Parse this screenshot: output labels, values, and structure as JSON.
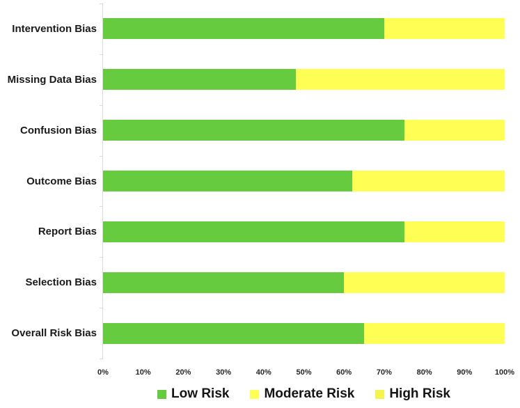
{
  "chart_data": {
    "type": "bar",
    "orientation": "horizontal-stacked",
    "title": "",
    "xlabel": "",
    "ylabel": "",
    "xlim": [
      0,
      100
    ],
    "grid": false,
    "legend_position": "bottom",
    "categories": [
      "Intervention Bias",
      "Missing Data Bias",
      "Confusion Bias",
      "Outcome Bias",
      "Report Bias",
      "Selection Bias",
      "Overall Risk Bias"
    ],
    "series": [
      {
        "name": "Low Risk",
        "color": "#66CB3E",
        "values": [
          70,
          48,
          75,
          62,
          75,
          60,
          65
        ]
      },
      {
        "name": "Moderate Risk",
        "color": "#FEFE55",
        "values": [
          30,
          52,
          25,
          38,
          25,
          40,
          35
        ]
      },
      {
        "name": "High Risk",
        "color": "#F4F44F",
        "values": [
          0,
          0,
          0,
          0,
          0,
          0,
          0
        ]
      }
    ],
    "x_ticks": [
      "0%",
      "10%",
      "20%",
      "30%",
      "40%",
      "50%",
      "60%",
      "70%",
      "80%",
      "90%",
      "100%"
    ],
    "axis_color": "#d9d9d9"
  }
}
